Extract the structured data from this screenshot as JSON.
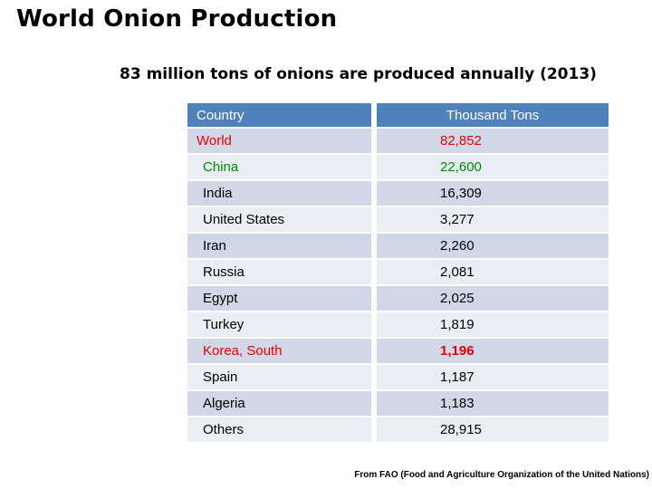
{
  "title": "World Onion Production",
  "subtitle": "83 million tons of onions are produced annually (2013)",
  "table": {
    "headers": [
      "Country",
      "Thousand Tons"
    ],
    "rows": [
      {
        "country": "World",
        "value": "82,852"
      },
      {
        "country": "China",
        "value": "22,600"
      },
      {
        "country": "India",
        "value": "16,309"
      },
      {
        "country": "United States",
        "value": "3,277"
      },
      {
        "country": "Iran",
        "value": "2,260"
      },
      {
        "country": "Russia",
        "value": "2,081"
      },
      {
        "country": "Egypt",
        "value": "2,025"
      },
      {
        "country": "Turkey",
        "value": "1,819"
      },
      {
        "country": "Korea, South",
        "value": "1,196"
      },
      {
        "country": "Spain",
        "value": "1,187"
      },
      {
        "country": "Algeria",
        "value": "1,183"
      },
      {
        "country": "Others",
        "value": "28,915"
      }
    ]
  },
  "colors": {
    "header_bg": "#4f81bd",
    "row_dark": "#d0d8e8",
    "row_light": "#e9edf4",
    "highlight_red": "#e60000",
    "highlight_green": "#008a00"
  },
  "footer": "From FAO (Food and Agriculture Organization of the United Nations)"
}
